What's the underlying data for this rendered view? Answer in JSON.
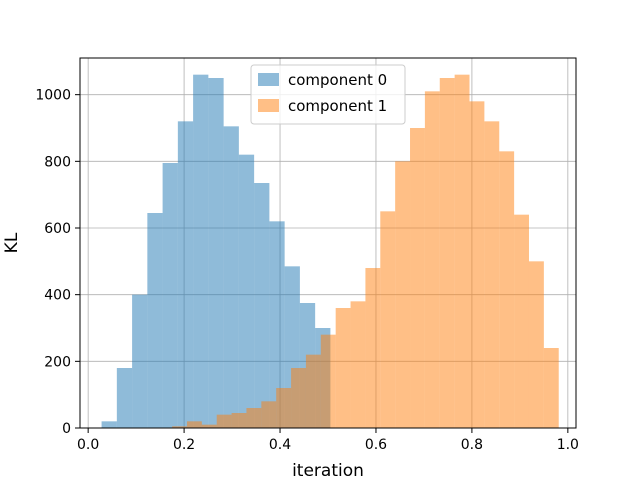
{
  "chart_data": {
    "type": "histogram",
    "title": "",
    "xlabel": "iteration",
    "ylabel": "KL",
    "xlim": [
      -0.017,
      1.017
    ],
    "ylim": [
      0,
      1110
    ],
    "xticks": [
      0.0,
      0.2,
      0.4,
      0.6,
      0.8,
      1.0
    ],
    "xtick_labels": [
      "0.0",
      "0.2",
      "0.4",
      "0.6",
      "0.8",
      "1.0"
    ],
    "yticks": [
      0,
      200,
      400,
      600,
      800,
      1000
    ],
    "ytick_labels": [
      "0",
      "200",
      "400",
      "600",
      "800",
      "1000"
    ],
    "grid": true,
    "legend_position": "upper-center",
    "alpha": 0.5,
    "series": [
      {
        "name": "component 0",
        "color": "#1f77b4",
        "bin_edges": [
          0.028,
          0.0598,
          0.0916,
          0.1234,
          0.1552,
          0.187,
          0.2188,
          0.2506,
          0.2824,
          0.3142,
          0.346,
          0.3778,
          0.4096,
          0.4414,
          0.4732,
          0.505
        ],
        "counts": [
          20,
          180,
          400,
          645,
          795,
          920,
          1060,
          1050,
          905,
          820,
          735,
          620,
          485,
          375,
          300
        ]
      },
      {
        "name": "component 1",
        "color": "#ff7f0e",
        "bin_edges": [
          0.175,
          0.206,
          0.237,
          0.268,
          0.299,
          0.33,
          0.361,
          0.392,
          0.423,
          0.454,
          0.485,
          0.516,
          0.547,
          0.578,
          0.609,
          0.64,
          0.671,
          0.702,
          0.733,
          0.764,
          0.795,
          0.826,
          0.857,
          0.888,
          0.919,
          0.95,
          0.981
        ],
        "counts": [
          5,
          20,
          10,
          40,
          45,
          60,
          80,
          120,
          180,
          220,
          280,
          360,
          380,
          480,
          650,
          800,
          900,
          1010,
          1050,
          1060,
          980,
          920,
          830,
          640,
          500,
          240
        ]
      }
    ]
  }
}
